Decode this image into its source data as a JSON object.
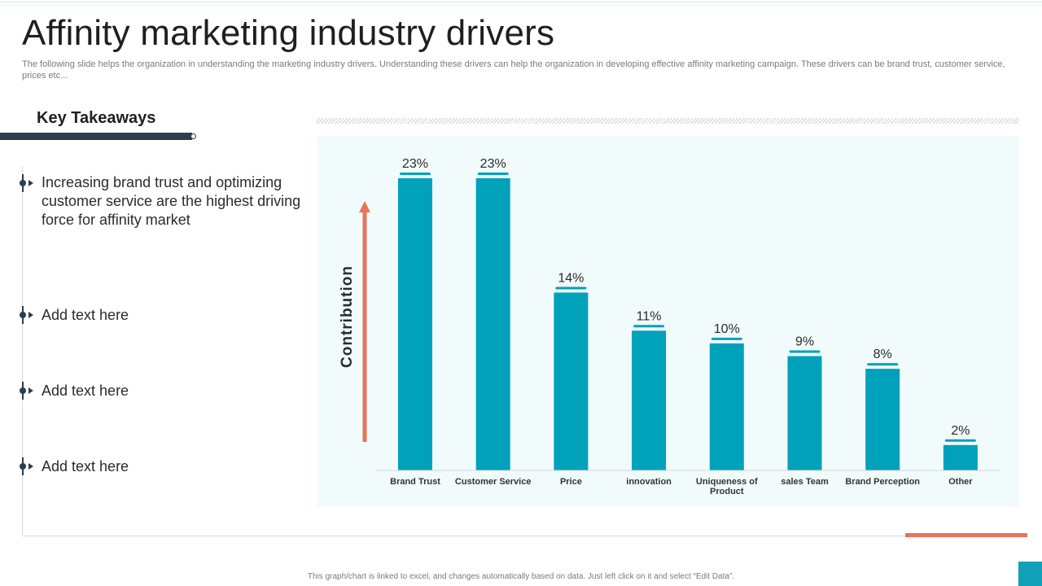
{
  "slide": {
    "title": "Affinity marketing industry drivers",
    "subtitle": "The following slide helps the organization in understanding the marketing industry drivers. Understanding these drivers can help the organization in developing effective affinity marketing campaign. These drivers can be brand trust, customer service, prices etc...",
    "footer": "This graph/chart is linked to excel, and changes automatically based on data. Just left click on it and select “Edit Data”."
  },
  "takeaways": {
    "heading": "Key Takeaways",
    "items": [
      "Increasing brand trust and optimizing customer service are the highest driving force for affinity market",
      "Add text here",
      "Add text here",
      "Add text here"
    ]
  },
  "colors": {
    "bar": "#00a1bb",
    "arrow": "#e8745a",
    "dark": "#2c3e50",
    "accent": "#e8745a"
  },
  "chart_data": {
    "type": "bar",
    "categories": [
      "Brand Trust",
      "Customer Service",
      "Price",
      "innovation",
      "Uniqueness of Product",
      "sales Team",
      "Brand Perception",
      "Other"
    ],
    "values": [
      23,
      23,
      14,
      11,
      10,
      9,
      8,
      2
    ],
    "value_labels": [
      "23%",
      "23%",
      "14%",
      "11%",
      "10%",
      "9%",
      "8%",
      "2%"
    ],
    "ylabel": "Contribution",
    "ylim": [
      0,
      23
    ],
    "grid": false,
    "legend": "none"
  }
}
